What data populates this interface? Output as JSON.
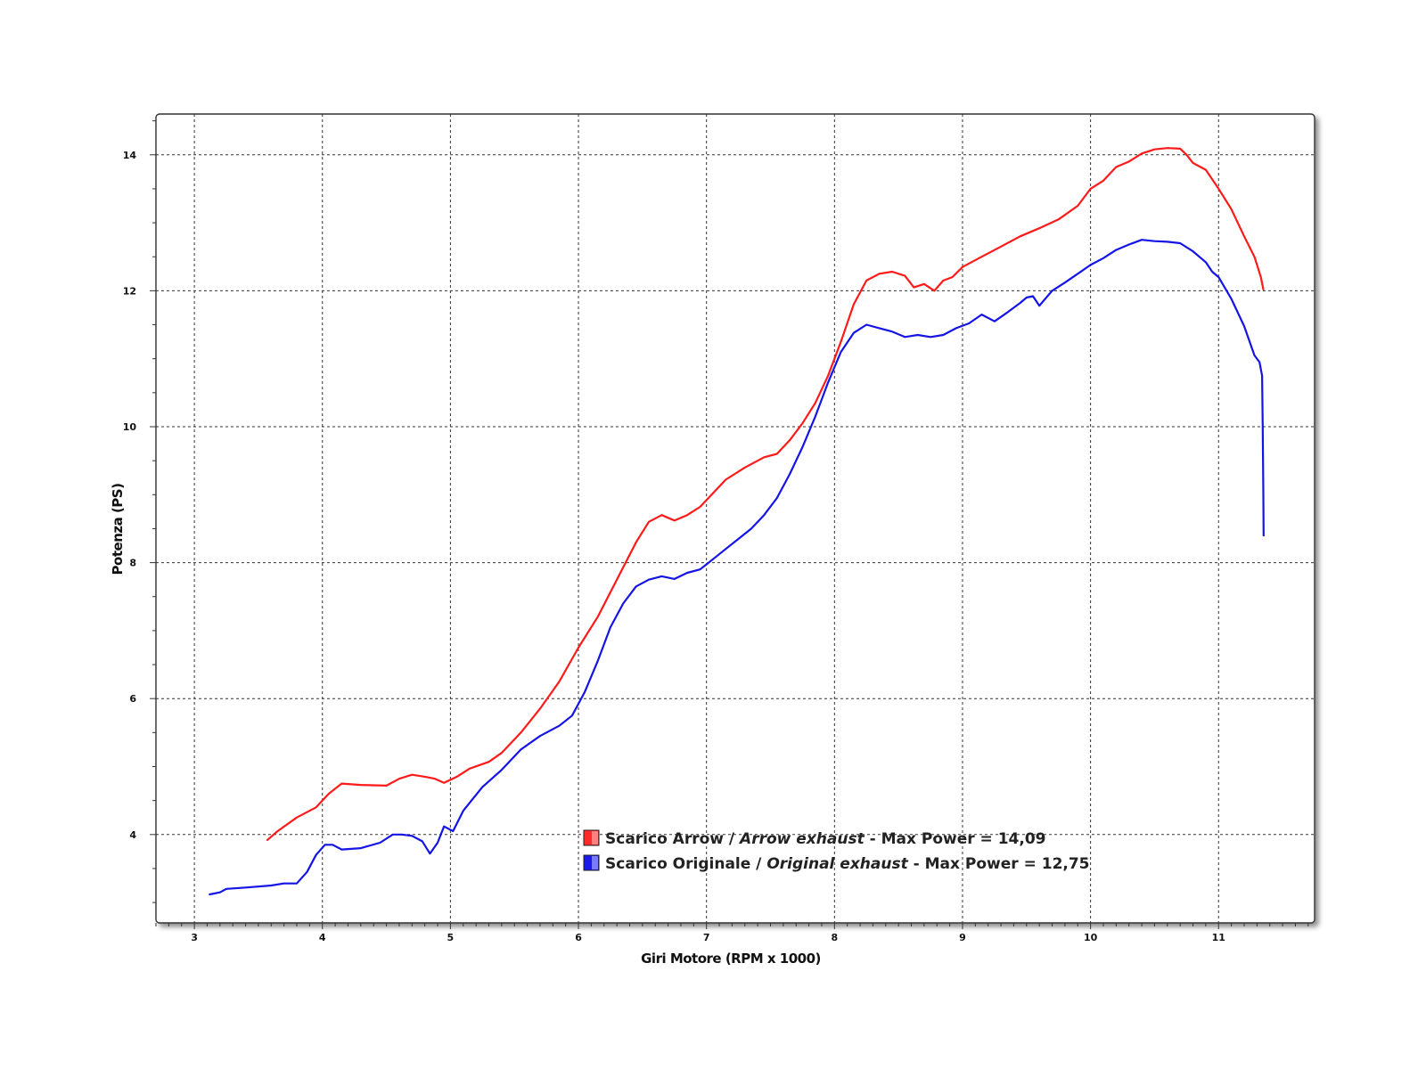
{
  "chart_data": {
    "type": "line",
    "xlabel": "Giri Motore (RPM x 1000)",
    "ylabel": "Potenza (PS)",
    "xlim": [
      2.7,
      11.75
    ],
    "ylim": [
      2.7,
      14.6
    ],
    "xticks": [
      3,
      4,
      5,
      6,
      7,
      8,
      9,
      10,
      11
    ],
    "yticks": [
      4,
      6,
      8,
      10,
      12,
      14
    ],
    "grid": true,
    "legend_position": "bottom-center",
    "series": [
      {
        "name": "Scarico Arrow / Arrow exhaust - Max Power = 14,09",
        "name_parts": {
          "a": "Scarico Arrow / ",
          "b": "Arrow exhaust",
          "c": " - Max Power = 14,09"
        },
        "color": "#ff1a1a",
        "x": [
          3.57,
          3.65,
          3.8,
          3.95,
          4.05,
          4.15,
          4.3,
          4.5,
          4.6,
          4.7,
          4.8,
          4.88,
          4.95,
          5.05,
          5.15,
          5.3,
          5.4,
          5.55,
          5.7,
          5.85,
          6.0,
          6.15,
          6.3,
          6.45,
          6.55,
          6.65,
          6.75,
          6.85,
          6.95,
          7.05,
          7.15,
          7.3,
          7.45,
          7.55,
          7.65,
          7.75,
          7.85,
          7.95,
          8.05,
          8.15,
          8.25,
          8.35,
          8.45,
          8.55,
          8.62,
          8.7,
          8.78,
          8.85,
          8.92,
          9.0,
          9.15,
          9.3,
          9.45,
          9.6,
          9.75,
          9.9,
          10.0,
          10.1,
          10.2,
          10.3,
          10.4,
          10.5,
          10.6,
          10.7,
          10.75,
          10.8,
          10.9,
          11.0,
          11.1,
          11.2,
          11.28,
          11.33,
          11.35
        ],
        "y": [
          3.92,
          4.05,
          4.25,
          4.4,
          4.6,
          4.75,
          4.73,
          4.72,
          4.82,
          4.88,
          4.85,
          4.82,
          4.76,
          4.85,
          4.97,
          5.07,
          5.2,
          5.5,
          5.85,
          6.25,
          6.75,
          7.2,
          7.75,
          8.3,
          8.6,
          8.7,
          8.62,
          8.7,
          8.82,
          9.02,
          9.22,
          9.4,
          9.55,
          9.6,
          9.8,
          10.05,
          10.35,
          10.75,
          11.25,
          11.8,
          12.15,
          12.25,
          12.28,
          12.22,
          12.05,
          12.1,
          12.0,
          12.15,
          12.2,
          12.35,
          12.5,
          12.65,
          12.8,
          12.92,
          13.05,
          13.25,
          13.5,
          13.62,
          13.82,
          13.9,
          14.02,
          14.08,
          14.1,
          14.09,
          14.0,
          13.88,
          13.78,
          13.5,
          13.2,
          12.8,
          12.5,
          12.2,
          12.02
        ]
      },
      {
        "name": "Scarico Originale / Original exhaust - Max Power = 12,75",
        "name_parts": {
          "a": "Scarico Originale / ",
          "b": "Original exhaust",
          "c": " - Max Power = 12,75"
        },
        "color": "#1414e6",
        "x": [
          3.12,
          3.2,
          3.25,
          3.4,
          3.6,
          3.7,
          3.8,
          3.88,
          3.95,
          4.02,
          4.08,
          4.15,
          4.3,
          4.45,
          4.55,
          4.62,
          4.7,
          4.78,
          4.84,
          4.9,
          4.95,
          5.02,
          5.1,
          5.25,
          5.4,
          5.55,
          5.7,
          5.85,
          5.95,
          6.05,
          6.15,
          6.25,
          6.35,
          6.45,
          6.55,
          6.65,
          6.75,
          6.85,
          6.95,
          7.05,
          7.15,
          7.25,
          7.35,
          7.45,
          7.55,
          7.65,
          7.75,
          7.85,
          7.95,
          8.05,
          8.15,
          8.25,
          8.35,
          8.45,
          8.55,
          8.65,
          8.75,
          8.85,
          8.95,
          9.05,
          9.15,
          9.25,
          9.35,
          9.45,
          9.5,
          9.55,
          9.6,
          9.7,
          9.8,
          9.9,
          10.0,
          10.1,
          10.2,
          10.3,
          10.4,
          10.5,
          10.6,
          10.7,
          10.8,
          10.9,
          10.95,
          11.0,
          11.1,
          11.2,
          11.28,
          11.32,
          11.34,
          11.345,
          11.35,
          11.352
        ],
        "y": [
          3.12,
          3.15,
          3.2,
          3.22,
          3.25,
          3.28,
          3.28,
          3.45,
          3.7,
          3.85,
          3.85,
          3.78,
          3.8,
          3.88,
          4.0,
          4.0,
          3.98,
          3.9,
          3.72,
          3.88,
          4.12,
          4.05,
          4.35,
          4.7,
          4.95,
          5.25,
          5.45,
          5.6,
          5.75,
          6.1,
          6.55,
          7.05,
          7.4,
          7.65,
          7.75,
          7.8,
          7.76,
          7.85,
          7.9,
          8.05,
          8.2,
          8.35,
          8.5,
          8.7,
          8.95,
          9.3,
          9.7,
          10.15,
          10.65,
          11.1,
          11.38,
          11.5,
          11.45,
          11.4,
          11.32,
          11.35,
          11.32,
          11.35,
          11.45,
          11.52,
          11.65,
          11.55,
          11.68,
          11.82,
          11.9,
          11.92,
          11.78,
          12.0,
          12.12,
          12.25,
          12.38,
          12.48,
          12.6,
          12.68,
          12.75,
          12.73,
          12.72,
          12.7,
          12.58,
          12.42,
          12.28,
          12.2,
          11.88,
          11.48,
          11.05,
          10.95,
          10.75,
          10.0,
          9.0,
          8.4
        ]
      }
    ]
  }
}
